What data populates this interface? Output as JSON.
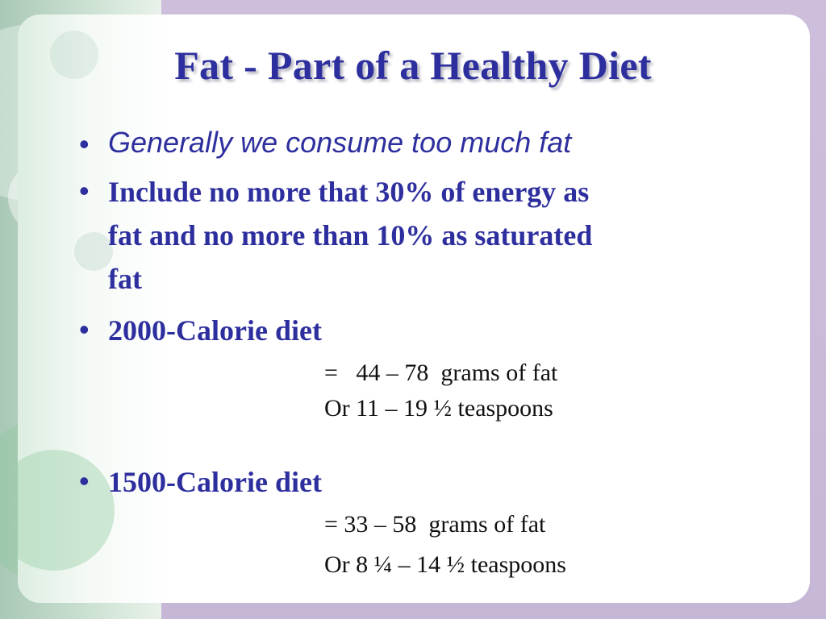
{
  "slide": {
    "title": "Fat - Part of a Healthy Diet",
    "bullets": [
      {
        "text": "Generally we consume too much fat"
      },
      {
        "line1": "Include no more that 30% of energy as",
        "line2": "fat and no more than 10% as saturated",
        "line3": "fat"
      },
      {
        "text": "2000-Calorie diet"
      },
      {
        "text": "1500-Calorie diet"
      }
    ],
    "details_2000": {
      "grams": "=   44 – 78  grams of fat",
      "teaspoons": "Or 11 – 19 ½ teaspoons"
    },
    "details_1500": {
      "grams": "= 33 – 58  grams of fat",
      "teaspoons": "Or 8 ¼ – 14 ½ teaspoons"
    },
    "bullet_symbol": "•"
  },
  "colors": {
    "title": "#2e2f9e",
    "body": "#2e2f9e",
    "detail": "#111111",
    "frame": "#c9bcd8",
    "accent_green": "#a9c8b6"
  }
}
